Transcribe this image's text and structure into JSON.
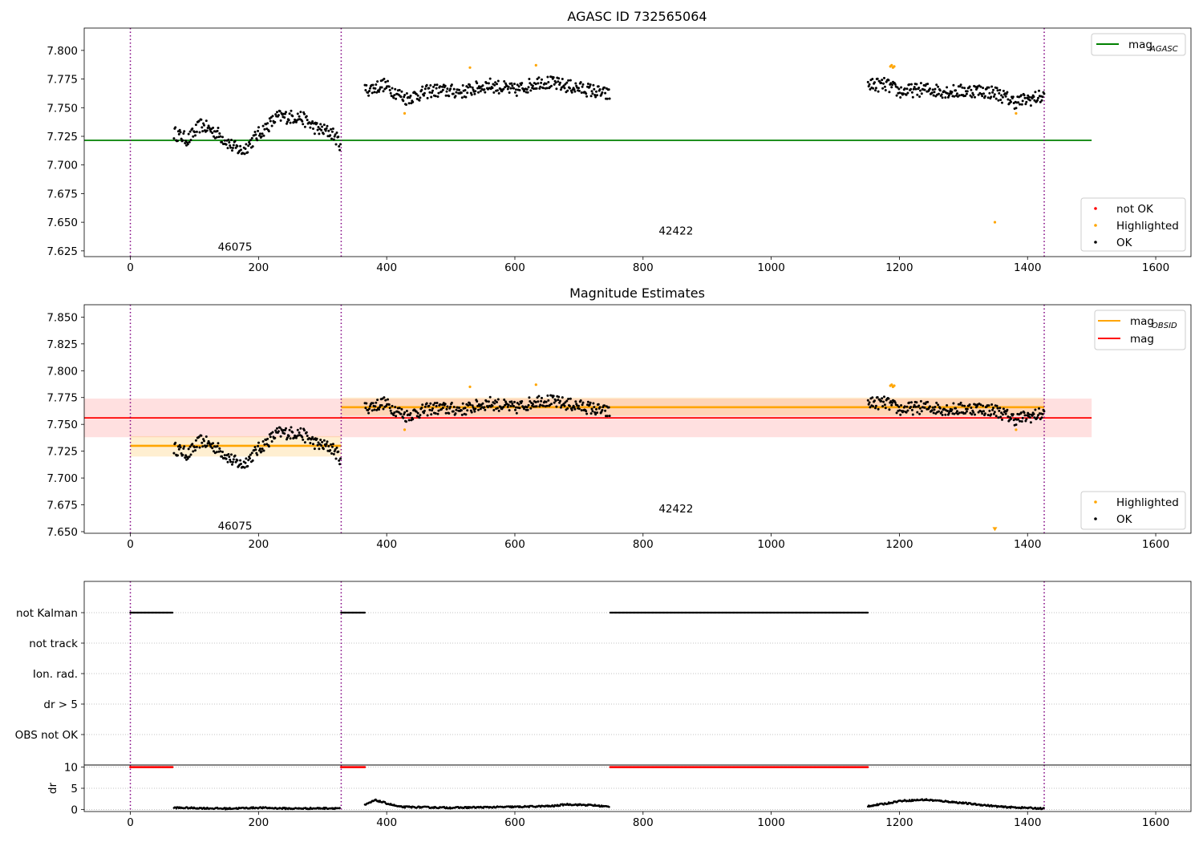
{
  "chart_data": [
    {
      "type": "scatter",
      "title": "AGASC ID 732565064",
      "xlabel": "",
      "ylabel": "",
      "xlim": [
        -72,
        1655
      ],
      "ylim": [
        7.62,
        7.8195
      ],
      "xticks": [
        0,
        200,
        400,
        600,
        800,
        1000,
        1200,
        1400,
        1600
      ],
      "yticks": [
        "7.625",
        "7.650",
        "7.675",
        "7.700",
        "7.725",
        "7.750",
        "7.775",
        "7.800"
      ],
      "grid": false,
      "colors": {
        "ok": "#000000",
        "highlighted": "#ffa500",
        "not_ok": "#ff0000",
        "agasc_line": "#008000",
        "obsid_boundary": "#800080"
      },
      "obsid_boundaries": [
        0,
        329,
        1426
      ],
      "obsid_labels": [
        {
          "text": "46075",
          "x": 164,
          "y": 7.628
        },
        {
          "text": "42422",
          "x": 852,
          "y": 7.642
        }
      ],
      "agasc_mag": {
        "value": 7.7215,
        "x_range": [
          -72,
          1500
        ]
      },
      "series": [
        {
          "name": "OK",
          "color": "#000000",
          "segments": [
            {
              "x_range": [
                68,
                328
              ],
              "knots": [
                [
                  68,
                  7.728
                ],
                [
                  90,
                  7.722
                ],
                [
                  110,
                  7.735
                ],
                [
                  135,
                  7.728
                ],
                [
                  160,
                  7.716
                ],
                [
                  175,
                  7.712
                ],
                [
                  200,
                  7.727
                ],
                [
                  230,
                  7.742
                ],
                [
                  265,
                  7.742
                ],
                [
                  290,
                  7.732
                ],
                [
                  315,
                  7.728
                ],
                [
                  328,
                  7.718
                ]
              ]
            },
            {
              "x_range": [
                366,
                748
              ],
              "knots": [
                [
                  366,
                  7.765
                ],
                [
                  395,
                  7.77
                ],
                [
                  430,
                  7.758
                ],
                [
                  470,
                  7.765
                ],
                [
                  520,
                  7.764
                ],
                [
                  560,
                  7.77
                ],
                [
                  600,
                  7.765
                ],
                [
                  640,
                  7.773
                ],
                [
                  690,
                  7.768
                ],
                [
                  720,
                  7.765
                ],
                [
                  748,
                  7.761
                ]
              ]
            },
            {
              "x_range": [
                1151,
                1426
              ],
              "knots": [
                [
                  1151,
                  7.77
                ],
                [
                  1180,
                  7.77
                ],
                [
                  1200,
                  7.764
                ],
                [
                  1240,
                  7.766
                ],
                [
                  1280,
                  7.764
                ],
                [
                  1320,
                  7.765
                ],
                [
                  1350,
                  7.763
                ],
                [
                  1380,
                  7.755
                ],
                [
                  1426,
                  7.76
                ]
              ]
            }
          ]
        },
        {
          "name": "Highlighted",
          "color": "#ffa500",
          "points": [
            [
              428,
              7.745
            ],
            [
              530,
              7.785
            ],
            [
              633,
              7.787
            ],
            [
              1186,
              7.786
            ],
            [
              1188,
              7.787
            ],
            [
              1190,
              7.785
            ],
            [
              1192,
              7.786
            ],
            [
              1349,
              7.65
            ],
            [
              1382,
              7.745
            ]
          ]
        },
        {
          "name": "not OK",
          "color": "#ff0000",
          "points": []
        }
      ],
      "legends": [
        {
          "position": "top-right",
          "entries": [
            {
              "label": "mag",
              "sub": "AGASC",
              "marker": "line",
              "color": "#008000"
            }
          ]
        },
        {
          "position": "bottom-right",
          "entries": [
            {
              "label": "not OK",
              "marker": "dot",
              "color": "#ff0000"
            },
            {
              "label": "Highlighted",
              "marker": "dot",
              "color": "#ffa500"
            },
            {
              "label": "OK",
              "marker": "dot",
              "color": "#000000"
            }
          ]
        }
      ]
    },
    {
      "type": "scatter",
      "title": "Magnitude Estimates",
      "xlabel": "",
      "ylabel": "",
      "xlim": [
        -72,
        1655
      ],
      "ylim": [
        7.6485,
        7.8615
      ],
      "xticks": [
        0,
        200,
        400,
        600,
        800,
        1000,
        1200,
        1400,
        1600
      ],
      "yticks": [
        "7.650",
        "7.675",
        "7.700",
        "7.725",
        "7.750",
        "7.775",
        "7.800",
        "7.825",
        "7.850"
      ],
      "grid": false,
      "obsid_boundaries": [
        0,
        329,
        1426
      ],
      "obsid_labels": [
        {
          "text": "46075",
          "x": 164,
          "y": 7.655
        },
        {
          "text": "42422",
          "x": 852,
          "y": 7.671
        }
      ],
      "mag": {
        "value": 7.756,
        "band": [
          7.738,
          7.774
        ],
        "x_range": [
          -72,
          1500
        ],
        "color": "#ff0000"
      },
      "mag_obsid": [
        {
          "x_range": [
            0,
            329
          ],
          "value": 7.73,
          "band": [
            7.72,
            7.739
          ]
        },
        {
          "x_range": [
            329,
            1426
          ],
          "value": 7.766,
          "band": [
            7.758,
            7.775
          ]
        }
      ],
      "series": [
        {
          "name": "OK",
          "color": "#000000"
        },
        {
          "name": "Highlighted",
          "color": "#ffa500",
          "points": [
            [
              428,
              7.745
            ],
            [
              530,
              7.785
            ],
            [
              633,
              7.787
            ],
            [
              1186,
              7.786
            ],
            [
              1188,
              7.787
            ],
            [
              1190,
              7.785
            ],
            [
              1192,
              7.786
            ],
            [
              1349,
              7.652
            ],
            [
              1382,
              7.745
            ]
          ]
        }
      ],
      "legends": [
        {
          "position": "top-right",
          "entries": [
            {
              "label": "mag",
              "sub": "OBSID",
              "marker": "line",
              "color": "#ffa500"
            },
            {
              "label": "mag",
              "sub": "",
              "marker": "line",
              "color": "#ff0000"
            }
          ]
        },
        {
          "position": "bottom-right",
          "entries": [
            {
              "label": "Highlighted",
              "marker": "dot",
              "color": "#ffa500"
            },
            {
              "label": "OK",
              "marker": "dot",
              "color": "#000000"
            }
          ]
        }
      ]
    },
    {
      "type": "scatter",
      "title": "",
      "xlim": [
        -72,
        1655
      ],
      "categories": [
        "not Kalman",
        "not track",
        "Ion. rad.",
        "dr > 5",
        "OBS not OK"
      ],
      "grid": true,
      "obsid_boundaries": [
        0,
        329,
        1426
      ],
      "flags": [
        {
          "category": "not Kalman",
          "x_ranges": [
            [
              0,
              66
            ],
            [
              329,
              366
            ],
            [
              749,
              1151
            ]
          ]
        }
      ]
    },
    {
      "type": "scatter",
      "title": "",
      "xlabel": "",
      "ylabel": "dr",
      "xlim": [
        -72,
        1655
      ],
      "ylim": [
        -0.5,
        10.5
      ],
      "xticks": [
        0,
        200,
        400,
        600,
        800,
        1000,
        1200,
        1400,
        1600
      ],
      "yticks": [
        "0",
        "5",
        "10"
      ],
      "grid": true,
      "obsid_boundaries": [
        0,
        329,
        1426
      ],
      "series": [
        {
          "name": "dr",
          "color": "#000000",
          "segments": [
            {
              "x_range": [
                68,
                328
              ],
              "knots": [
                [
                  68,
                  0.4
                ],
                [
                  150,
                  0.2
                ],
                [
                  200,
                  0.4
                ],
                [
                  250,
                  0.2
                ],
                [
                  328,
                  0.3
                ]
              ]
            },
            {
              "x_range": [
                366,
                748
              ],
              "knots": [
                [
                  366,
                  1.0
                ],
                [
                  382,
                  2.2
                ],
                [
                  420,
                  0.6
                ],
                [
                  500,
                  0.4
                ],
                [
                  600,
                  0.6
                ],
                [
                  660,
                  0.8
                ],
                [
                  680,
                  1.2
                ],
                [
                  720,
                  1.0
                ],
                [
                  748,
                  0.6
                ]
              ]
            },
            {
              "x_range": [
                1151,
                1426
              ],
              "knots": [
                [
                  1151,
                  0.8
                ],
                [
                  1180,
                  1.4
                ],
                [
                  1200,
                  2.0
                ],
                [
                  1240,
                  2.3
                ],
                [
                  1280,
                  1.8
                ],
                [
                  1320,
                  1.2
                ],
                [
                  1360,
                  0.6
                ],
                [
                  1426,
                  0.2
                ]
              ]
            }
          ]
        },
        {
          "name": "dr (capped)",
          "color": "#ff0000",
          "value": 10,
          "x_ranges": [
            [
              0,
              66
            ],
            [
              329,
              366
            ],
            [
              749,
              1151
            ]
          ]
        }
      ]
    }
  ]
}
